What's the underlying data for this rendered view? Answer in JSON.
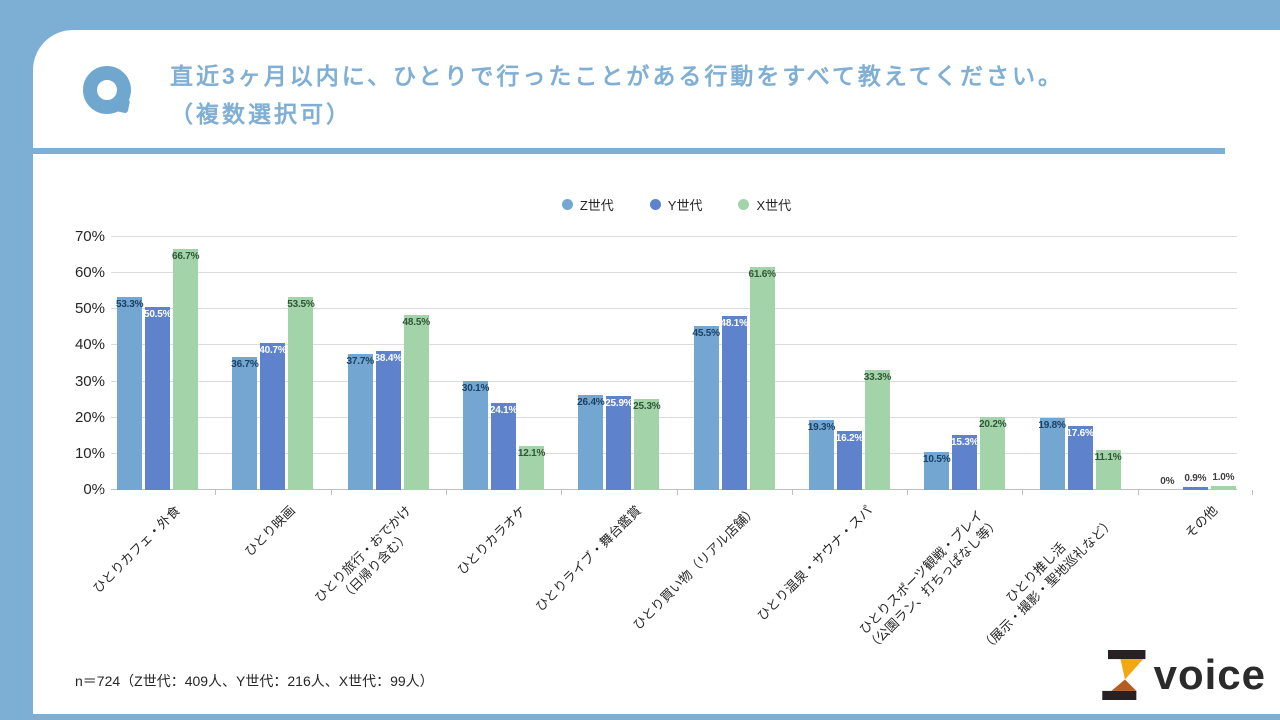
{
  "page": {
    "background_color": "#7CAFD3",
    "q_mark_color": "#6FA7CF",
    "title_line1": "直近3ヶ月以内に、ひとりで行ったことがある行動をすべて教えてください。",
    "title_line2": "（複数選択可）"
  },
  "footer": {
    "sample_note": "n＝724（Z世代：409人、Y世代：216人、X世代：99人）",
    "logo_text": "voice"
  },
  "chart_data": {
    "type": "bar",
    "title": "",
    "xlabel": "",
    "ylabel": "",
    "ylim": [
      0,
      70
    ],
    "y_ticks": [
      "0%",
      "10%",
      "20%",
      "30%",
      "40%",
      "50%",
      "60%",
      "70%"
    ],
    "grid": true,
    "legend_position": "top",
    "categories": [
      "ひとりカフェ・外食",
      "ひとり映画",
      "ひとり旅行・おでかけ\n（日帰り含む）",
      "ひとりカラオケ",
      "ひとりライブ・舞台鑑賞",
      "ひとり買い物（リアル店舗）",
      "ひとり温泉・サウナ・スパ",
      "ひとりスポーツ観戦・プレイ\n（公園ラン、打ちっぱなし等）",
      "ひとり推し活\n（展示・撮影・聖地巡礼など）",
      "その他"
    ],
    "series": [
      {
        "name": "Z世代",
        "color": "#73A7D2",
        "label_color": "#1B4064",
        "values": [
          53.3,
          36.7,
          37.7,
          30.1,
          26.4,
          45.5,
          19.3,
          10.5,
          19.8,
          0
        ],
        "labels": [
          "53.3%",
          "36.7%",
          "37.7%",
          "30.1%",
          "26.4%",
          "45.5%",
          "19.3%",
          "10.5%",
          "19.8%",
          "0%"
        ]
      },
      {
        "name": "Y世代",
        "color": "#5E82CB",
        "label_color": "#FFFFFF",
        "values": [
          50.5,
          40.7,
          38.4,
          24.1,
          25.9,
          48.1,
          16.2,
          15.3,
          17.6,
          0.9
        ],
        "labels": [
          "50.5%",
          "40.7%",
          "38.4%",
          "24.1%",
          "25.9%",
          "48.1%",
          "16.2%",
          "15.3%",
          "17.6%",
          "0.9%"
        ]
      },
      {
        "name": "X世代",
        "color": "#A3D3A8",
        "label_color": "#2F5637",
        "values": [
          66.7,
          53.5,
          48.5,
          12.1,
          25.3,
          61.6,
          33.3,
          20.2,
          11.1,
          1.0
        ],
        "labels": [
          "66.7%",
          "53.5%",
          "48.5%",
          "12.1%",
          "25.3%",
          "61.6%",
          "33.3%",
          "20.2%",
          "11.1%",
          "1.0%"
        ]
      }
    ],
    "outside_label_color": "#404040",
    "outside_label_threshold": 4
  }
}
